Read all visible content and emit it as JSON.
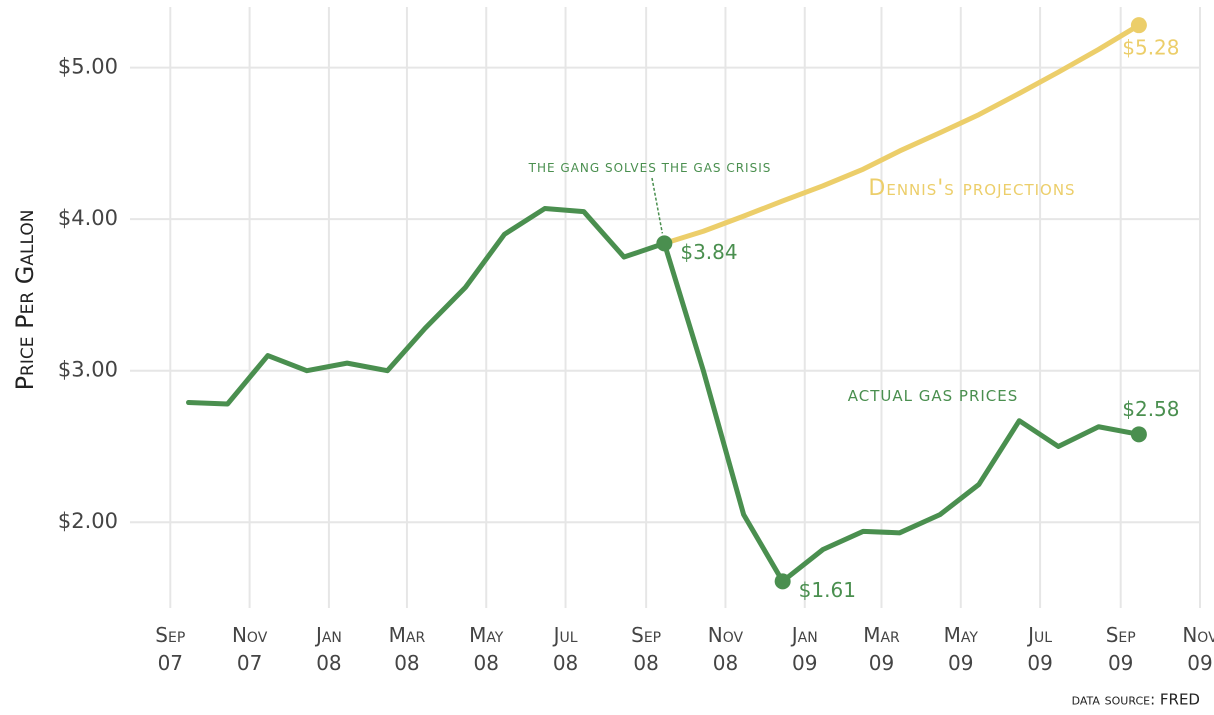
{
  "chart_data": {
    "type": "line",
    "y_label": "Price Per Gallon",
    "annotation": "the gang solves the gas crisis",
    "caption": "data source: FRED",
    "x": [
      "2007-09",
      "2007-10",
      "2007-11",
      "2007-12",
      "2008-01",
      "2008-02",
      "2008-03",
      "2008-04",
      "2008-05",
      "2008-06",
      "2008-07",
      "2008-08",
      "2008-09",
      "2008-10",
      "2008-11",
      "2008-12",
      "2009-01",
      "2009-02",
      "2009-03",
      "2009-04",
      "2009-05",
      "2009-06",
      "2009-07",
      "2009-08",
      "2009-09"
    ],
    "series": [
      {
        "name": "actual gas prices",
        "color": "#4a8f4f",
        "values": [
          2.79,
          2.78,
          3.1,
          3.0,
          3.05,
          3.0,
          3.28,
          3.55,
          3.9,
          4.07,
          4.05,
          3.75,
          3.84,
          3.0,
          2.05,
          1.61,
          1.82,
          1.94,
          1.93,
          2.05,
          2.25,
          2.67,
          2.5,
          2.63,
          2.58
        ],
        "value_labels": [
          null,
          null,
          null,
          null,
          null,
          null,
          null,
          null,
          null,
          null,
          null,
          null,
          "$3.84",
          null,
          null,
          "$1.61",
          null,
          null,
          null,
          null,
          null,
          null,
          null,
          null,
          "$2.58"
        ]
      },
      {
        "name": "Dennis's projections",
        "color": "#ecce6a",
        "values": [
          null,
          null,
          null,
          null,
          null,
          null,
          null,
          null,
          null,
          null,
          null,
          null,
          3.84,
          3.92,
          4.02,
          4.12,
          4.22,
          4.33,
          4.45,
          4.57,
          4.69,
          4.83,
          4.97,
          5.12,
          5.28
        ],
        "value_labels": [
          null,
          null,
          null,
          null,
          null,
          null,
          null,
          null,
          null,
          null,
          null,
          null,
          null,
          null,
          null,
          null,
          null,
          null,
          null,
          null,
          null,
          null,
          null,
          null,
          "$5.28"
        ]
      }
    ],
    "xlim": [
      "2007-08",
      "2009-11"
    ],
    "xticks": [
      {
        "value": "2007-09",
        "label": "Sep 07"
      },
      {
        "value": "2007-11",
        "label": "Nov 07"
      },
      {
        "value": "2008-01",
        "label": "Jan 08"
      },
      {
        "value": "2008-03",
        "label": "Mar 08"
      },
      {
        "value": "2008-05",
        "label": "May 08"
      },
      {
        "value": "2008-07",
        "label": "Jul 08"
      },
      {
        "value": "2008-09",
        "label": "Sep 08"
      },
      {
        "value": "2008-11",
        "label": "Nov 08"
      },
      {
        "value": "2009-01",
        "label": "Jan 09"
      },
      {
        "value": "2009-03",
        "label": "Mar 09"
      },
      {
        "value": "2009-05",
        "label": "May 09"
      },
      {
        "value": "2009-07",
        "label": "Jul 09"
      },
      {
        "value": "2009-09",
        "label": "Sep 09"
      },
      {
        "value": "2009-11",
        "label": "Nov 09"
      }
    ],
    "ylim": [
      1.5,
      5.4
    ],
    "yticks": [
      {
        "value": 2,
        "label": "$2.00"
      },
      {
        "value": 3,
        "label": "$3.00"
      },
      {
        "value": 4,
        "label": "$4.00"
      },
      {
        "value": 5,
        "label": "$5.00"
      }
    ],
    "grid": true
  }
}
